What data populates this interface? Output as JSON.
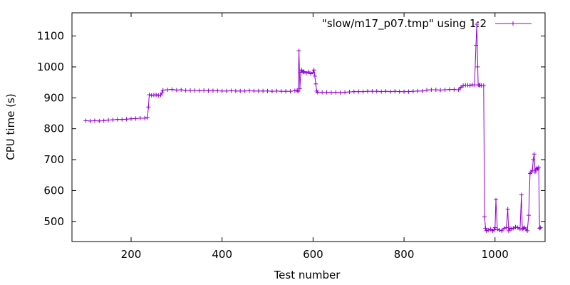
{
  "chart_data": {
    "type": "line",
    "title": "",
    "xlabel": "Test number",
    "ylabel": "CPU time (s)",
    "xlim": [
      70,
      1110
    ],
    "ylim": [
      435,
      1175
    ],
    "x_ticks": [
      200,
      400,
      600,
      800,
      1000
    ],
    "y_ticks": [
      500,
      600,
      700,
      800,
      900,
      1000,
      1100
    ],
    "grid": false,
    "legend_position": "top-right",
    "series": [
      {
        "name": "\"slow/m17_p07.tmp\" using 1:2",
        "color": "#9400d3",
        "marker": "plus",
        "x": [
          100,
          110,
          120,
          130,
          140,
          150,
          160,
          170,
          180,
          190,
          200,
          210,
          220,
          230,
          236,
          238,
          240,
          245,
          250,
          255,
          260,
          265,
          268,
          270,
          280,
          290,
          300,
          310,
          320,
          330,
          340,
          350,
          360,
          370,
          380,
          390,
          400,
          410,
          420,
          430,
          440,
          450,
          460,
          470,
          480,
          490,
          500,
          510,
          520,
          530,
          540,
          550,
          560,
          565,
          567,
          569,
          571,
          573,
          575,
          578,
          580,
          585,
          590,
          595,
          600,
          602,
          604,
          606,
          608,
          610,
          620,
          630,
          640,
          650,
          660,
          670,
          680,
          690,
          700,
          710,
          720,
          730,
          740,
          750,
          760,
          770,
          780,
          790,
          800,
          810,
          820,
          830,
          840,
          850,
          860,
          870,
          880,
          890,
          900,
          910,
          920,
          925,
          930,
          935,
          940,
          945,
          950,
          955,
          958,
          960,
          962,
          963,
          965,
          967,
          970,
          975,
          977,
          979,
          981,
          985,
          990,
          995,
          998,
          1000,
          1002,
          1005,
          1010,
          1015,
          1020,
          1025,
          1028,
          1030,
          1033,
          1036,
          1040,
          1045,
          1050,
          1055,
          1058,
          1060,
          1062,
          1065,
          1068,
          1071,
          1074,
          1077,
          1079,
          1082,
          1084,
          1086,
          1088,
          1090,
          1092,
          1094,
          1096,
          1098,
          1100
        ],
        "y": [
          826,
          825,
          826,
          825,
          826,
          828,
          829,
          830,
          830,
          831,
          832,
          833,
          834,
          834,
          836,
          870,
          910,
          908,
          909,
          910,
          908,
          909,
          916,
          925,
          926,
          927,
          925,
          926,
          924,
          924,
          924,
          923,
          924,
          923,
          923,
          923,
          922,
          922,
          923,
          922,
          922,
          922,
          923,
          922,
          922,
          922,
          922,
          921,
          922,
          921,
          921,
          921,
          923,
          924,
          921,
          1052,
          930,
          982,
          990,
          983,
          985,
          980,
          984,
          978,
          982,
          990,
          970,
          945,
          922,
          918,
          918,
          918,
          917,
          918,
          917,
          918,
          919,
          920,
          920,
          920,
          921,
          921,
          921,
          920,
          921,
          920,
          921,
          920,
          920,
          920,
          921,
          922,
          922,
          925,
          926,
          926,
          925,
          926,
          927,
          927,
          926,
          934,
          940,
          941,
          941,
          940,
          942,
          942,
          1070,
          1138,
          1000,
          942,
          941,
          941,
          940,
          940,
          515,
          478,
          470,
          472,
          475,
          470,
          473,
          480,
          570,
          475,
          472,
          470,
          478,
          480,
          540,
          470,
          478,
          476,
          478,
          482,
          480,
          476,
          586,
          475,
          478,
          480,
          475,
          470,
          520,
          655,
          660,
          665,
          700,
          718,
          660,
          668,
          672,
          670,
          675,
          478,
          480
        ]
      }
    ],
    "legend": {
      "label": "\"slow/m17_p07.tmp\" using 1:2"
    }
  }
}
